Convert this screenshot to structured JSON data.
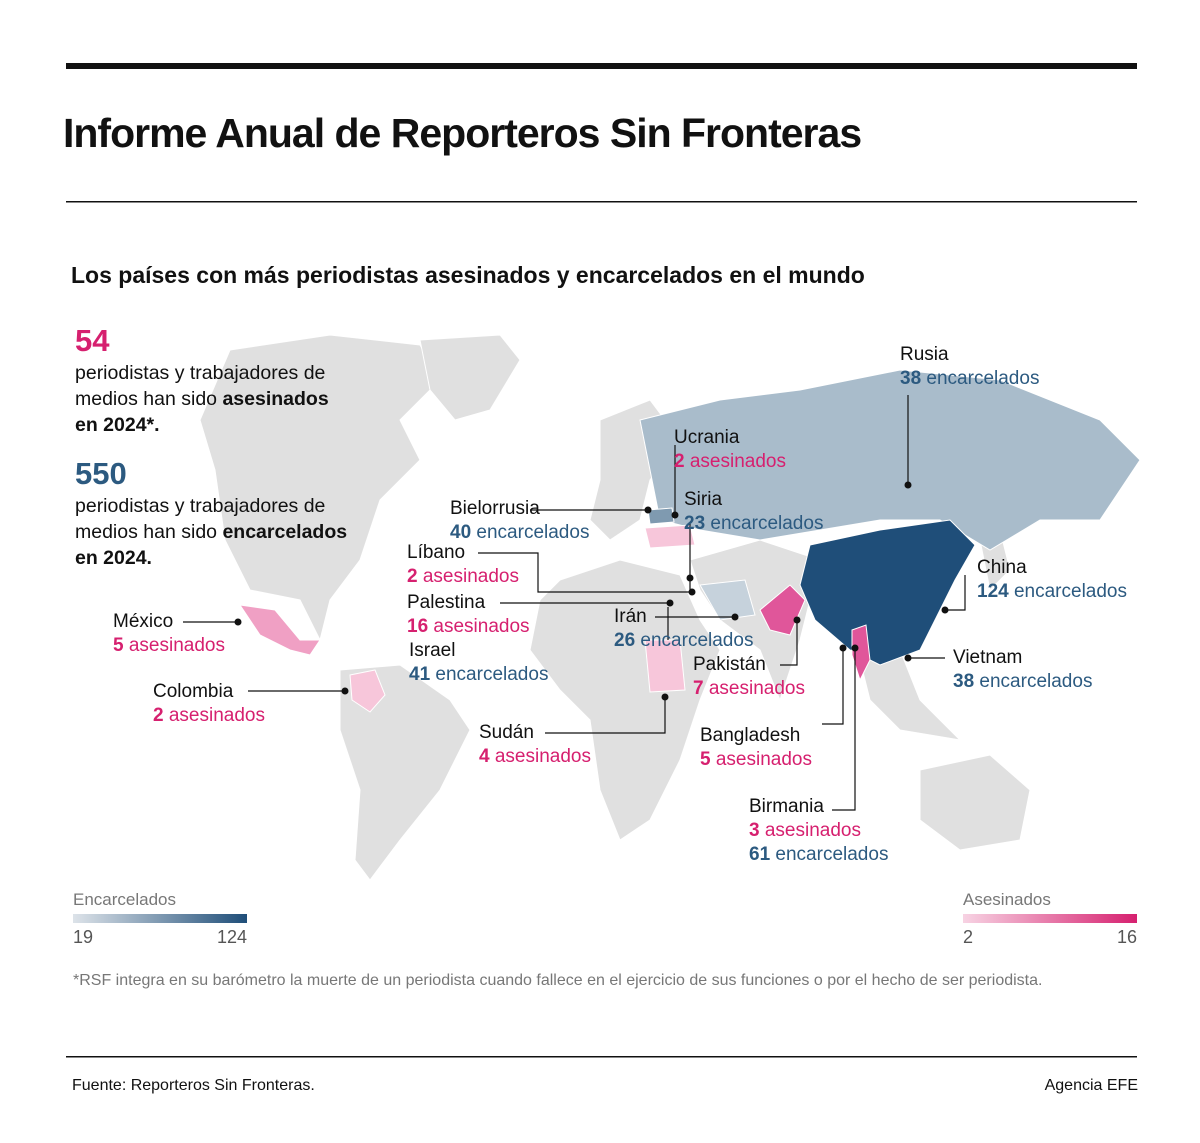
{
  "header": {
    "title": "Informe Anual de Reporteros Sin Fronteras",
    "subtitle": "Los países con más periodistas asesinados y encarcelados en el mundo"
  },
  "summary": [
    {
      "number": 54,
      "color": "#d6206f",
      "text": "periodistas y trabajadores de medios han sido",
      "bold": "asesinados en 2024*."
    },
    {
      "number": 550,
      "color": "#2c5a80",
      "text": "periodistas y trabajadores de medios han sido",
      "bold": "encarcelados en 2024."
    }
  ],
  "countries": [
    {
      "name": "Rusia",
      "stats": [
        {
          "value": 38,
          "unit": "encarcelados",
          "color": "#2c5a80"
        }
      ]
    },
    {
      "name": "Ucrania",
      "stats": [
        {
          "value": 2,
          "unit": "asesinados",
          "color": "#d6206f"
        }
      ]
    },
    {
      "name": "Bielorrusia",
      "stats": [
        {
          "value": 40,
          "unit": "encarcelados",
          "color": "#2c5a80"
        }
      ]
    },
    {
      "name": "Siria",
      "stats": [
        {
          "value": 23,
          "unit": "encarcelados",
          "color": "#2c5a80"
        }
      ]
    },
    {
      "name": "Líbano",
      "stats": [
        {
          "value": 2,
          "unit": "asesinados",
          "color": "#d6206f"
        }
      ]
    },
    {
      "name": "Palestina",
      "stats": [
        {
          "value": 16,
          "unit": "asesinados",
          "color": "#d6206f"
        }
      ]
    },
    {
      "name": "Israel",
      "stats": [
        {
          "value": 41,
          "unit": "encarcelados",
          "color": "#2c5a80"
        }
      ]
    },
    {
      "name": "Irán",
      "stats": [
        {
          "value": 26,
          "unit": "encarcelados",
          "color": "#2c5a80"
        }
      ]
    },
    {
      "name": "México",
      "stats": [
        {
          "value": 5,
          "unit": "asesinados",
          "color": "#d6206f"
        }
      ]
    },
    {
      "name": "Colombia",
      "stats": [
        {
          "value": 2,
          "unit": "asesinados",
          "color": "#d6206f"
        }
      ]
    },
    {
      "name": "Sudán",
      "stats": [
        {
          "value": 4,
          "unit": "asesinados",
          "color": "#d6206f"
        }
      ]
    },
    {
      "name": "Pakistán",
      "stats": [
        {
          "value": 7,
          "unit": "asesinados",
          "color": "#d6206f"
        }
      ]
    },
    {
      "name": "China",
      "stats": [
        {
          "value": 124,
          "unit": "encarcelados",
          "color": "#2c5a80"
        }
      ]
    },
    {
      "name": "Vietnam",
      "stats": [
        {
          "value": 38,
          "unit": "encarcelados",
          "color": "#2c5a80"
        }
      ]
    },
    {
      "name": "Bangladesh",
      "stats": [
        {
          "value": 5,
          "unit": "asesinados",
          "color": "#d6206f"
        }
      ]
    },
    {
      "name": "Birmania",
      "stats": [
        {
          "value": 3,
          "unit": "asesinados",
          "color": "#d6206f"
        },
        {
          "value": 61,
          "unit": "encarcelados",
          "color": "#2c5a80"
        }
      ]
    }
  ],
  "legends": [
    {
      "title": "Encarcelados",
      "min": 19,
      "max": 124,
      "colors": [
        "#dde3e9",
        "#1f4e79"
      ]
    },
    {
      "title": "Asesinados",
      "min": 2,
      "max": 16,
      "colors": [
        "#f7d3e3",
        "#d6206f"
      ]
    }
  ],
  "footnote": "*RSF integra en su barómetro la muerte de un periodista cuando fallece en el ejercicio de sus funciones o por el hecho de ser periodista.",
  "footer": {
    "source": "Fuente: Reporteros Sin Fronteras.",
    "agency": "Agencia EFE"
  }
}
